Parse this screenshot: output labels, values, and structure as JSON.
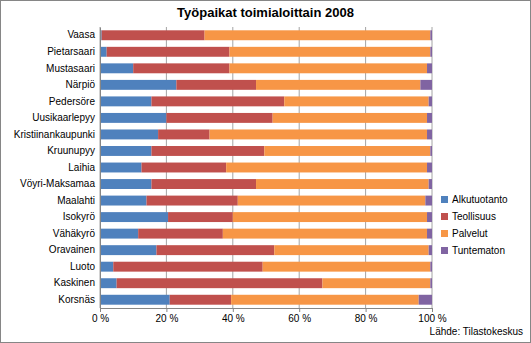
{
  "chart_data": {
    "type": "bar",
    "orientation": "horizontal",
    "stacked": true,
    "title": "Työpaikat toimialoittain 2008",
    "annotation": "Lähde: Tilastokeskus",
    "categories": [
      "Vaasa",
      "Pietarsaari",
      "Mustasaari",
      "Närpiö",
      "Pedersöre",
      "Uusikaarlepyy",
      "Kristiinankaupunki",
      "Kruunupyy",
      "Laihia",
      "Vöyri-Maksamaa",
      "Maalahti",
      "Isokyrö",
      "Vähäkyrö",
      "Oravainen",
      "Luoto",
      "Kaskinen",
      "Korsnäs"
    ],
    "series": [
      {
        "name": "Alkutuotanto",
        "color": "#4f81bd",
        "values": [
          0.5,
          2,
          10,
          23,
          15.5,
          20,
          17.5,
          15.5,
          12.5,
          15.5,
          14,
          20.5,
          11.5,
          17,
          4,
          5,
          21
        ]
      },
      {
        "name": "Teollisuus",
        "color": "#c0504d",
        "values": [
          31,
          37,
          29,
          24,
          40,
          32,
          15.5,
          34,
          25.5,
          31.5,
          27.5,
          19.5,
          25.5,
          35.5,
          45,
          62,
          18.5
        ]
      },
      {
        "name": "Palvelut",
        "color": "#f79646",
        "values": [
          68,
          60.5,
          59.5,
          49.5,
          43.5,
          46.5,
          65.5,
          50,
          60.5,
          52,
          56.5,
          58.5,
          61.5,
          46.5,
          50.5,
          32.5,
          56.5
        ]
      },
      {
        "name": "Tuntematon",
        "color": "#8064a2",
        "values": [
          0.5,
          0.5,
          1.5,
          3.5,
          1,
          1.5,
          1.5,
          0.5,
          1.5,
          1,
          2,
          1.5,
          1.5,
          1,
          0.5,
          0.5,
          4
        ]
      }
    ],
    "xlim": [
      0,
      100
    ],
    "xticks": [
      {
        "value": 0,
        "label": "0 %"
      },
      {
        "value": 20,
        "label": "20 %"
      },
      {
        "value": 40,
        "label": "40 %"
      },
      {
        "value": 60,
        "label": "60 %"
      },
      {
        "value": 80,
        "label": "80 %"
      },
      {
        "value": 100,
        "label": "100 %"
      }
    ],
    "grid": true,
    "legend": "right"
  }
}
